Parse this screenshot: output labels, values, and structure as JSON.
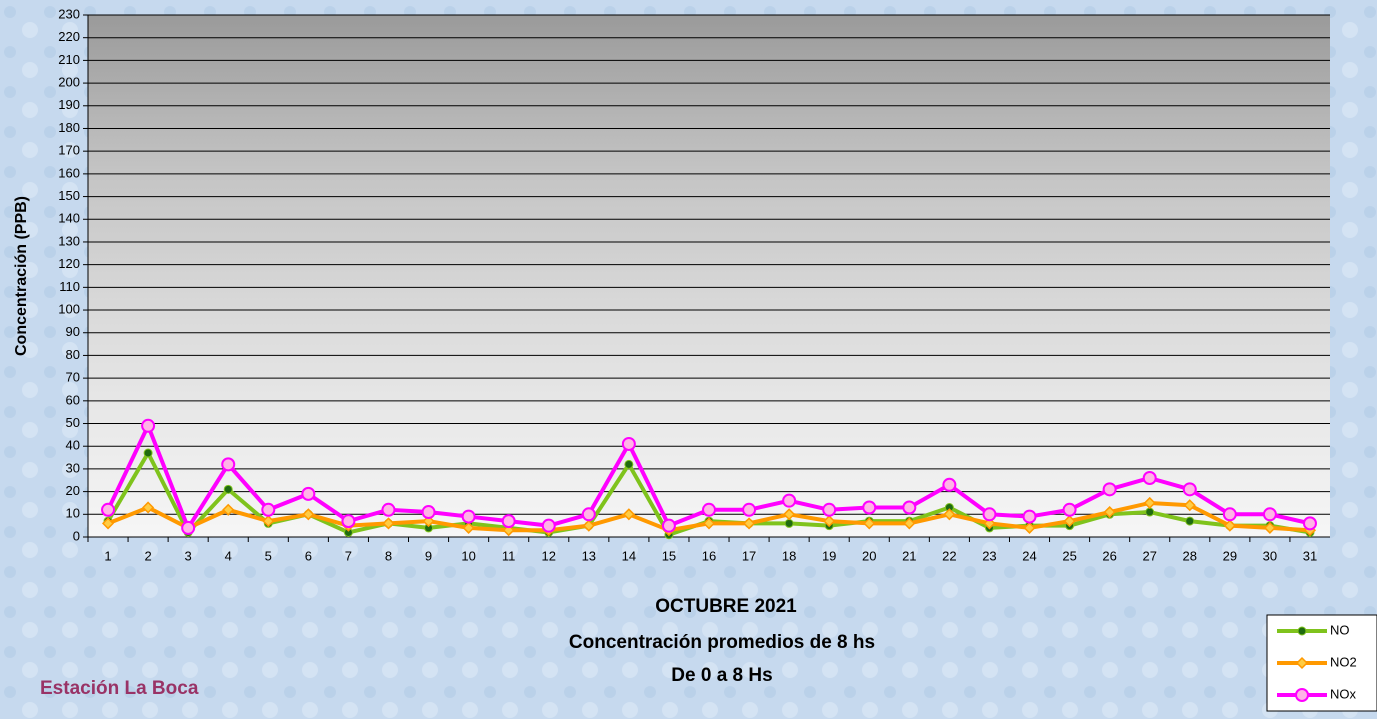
{
  "chart_data": {
    "type": "line",
    "title": "OCTUBRE 2021",
    "subtitle": [
      "Concentración promedios de 8 hs",
      "De 0 a 8 Hs"
    ],
    "annotation": "Estación La Boca",
    "y_label": "Concentración  (PPB)",
    "categories": [
      "1",
      "2",
      "3",
      "4",
      "5",
      "6",
      "7",
      "8",
      "9",
      "10",
      "11",
      "12",
      "13",
      "14",
      "15",
      "16",
      "17",
      "18",
      "19",
      "20",
      "21",
      "22",
      "23",
      "24",
      "25",
      "26",
      "27",
      "28",
      "29",
      "30",
      "31"
    ],
    "series": [
      {
        "name": "NO",
        "color": "#7fc31c",
        "marker": "dot",
        "marker_color": "#1f6b10",
        "values": [
          7,
          37,
          2,
          21,
          6,
          10,
          2,
          6,
          4,
          6,
          4,
          2,
          5,
          32,
          1,
          7,
          6,
          6,
          5,
          7,
          7,
          13,
          4,
          5,
          5,
          10,
          11,
          7,
          5,
          5,
          2
        ]
      },
      {
        "name": "NO2",
        "color": "#ff9900",
        "marker": "diamond",
        "marker_color": "#ffcc44",
        "values": [
          6,
          13,
          4,
          12,
          7,
          10,
          5,
          6,
          7,
          4,
          3,
          3,
          5,
          10,
          3,
          6,
          6,
          10,
          7,
          6,
          6,
          10,
          6,
          4,
          7,
          11,
          15,
          14,
          5,
          4,
          3
        ]
      },
      {
        "name": "NOx",
        "color": "#ff00ff",
        "marker": "circle",
        "marker_color": "#ffb3e6",
        "values": [
          12,
          49,
          4,
          32,
          12,
          19,
          7,
          12,
          11,
          9,
          7,
          5,
          10,
          41,
          5,
          12,
          12,
          16,
          12,
          13,
          13,
          23,
          10,
          9,
          12,
          21,
          26,
          21,
          10,
          10,
          6
        ]
      }
    ],
    "ylim": [
      0,
      230
    ],
    "yticks": [
      0,
      10,
      20,
      30,
      40,
      50,
      60,
      70,
      80,
      90,
      100,
      110,
      120,
      130,
      140,
      150,
      160,
      170,
      180,
      190,
      200,
      210,
      220,
      230
    ],
    "grid": true,
    "legend": "lower right"
  }
}
